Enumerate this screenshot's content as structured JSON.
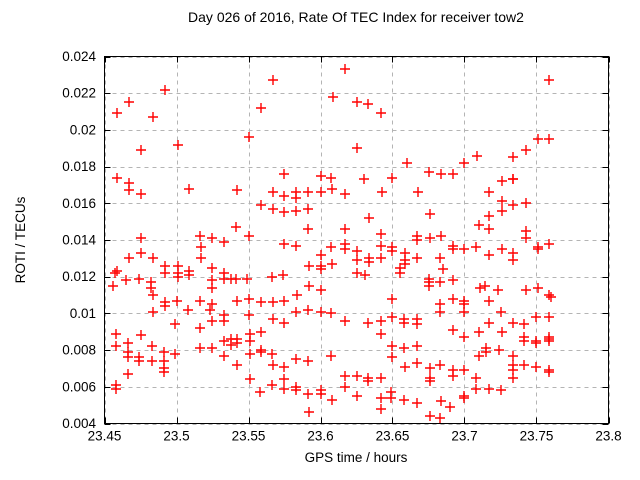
{
  "chart_data": {
    "type": "scatter",
    "title": "Day 026 of 2016, Rate Of TEC Index for receiver tow2",
    "xlabel": "GPS time / hours",
    "ylabel": "ROTI / TECUs",
    "xlim": [
      23.45,
      23.8
    ],
    "ylim": [
      0.004,
      0.024
    ],
    "x_ticks": [
      23.45,
      23.5,
      23.55,
      23.6,
      23.65,
      23.7,
      23.75,
      23.8
    ],
    "x_tick_labels": [
      "23.45",
      "23.5",
      "23.55",
      "23.6",
      "23.65",
      "23.7",
      "23.75",
      "23.8"
    ],
    "y_ticks": [
      0.004,
      0.006,
      0.008,
      0.01,
      0.012,
      0.014,
      0.016,
      0.018,
      0.02,
      0.022,
      0.024
    ],
    "y_tick_labels": [
      "0.004",
      "0.006",
      "0.008",
      "0.01",
      "0.012",
      "0.014",
      "0.016",
      "0.018",
      "0.02",
      "0.022",
      "0.024"
    ],
    "grid": true,
    "legend": "none",
    "marker_shape": "plus",
    "marker_color": "#ff0000",
    "grid_color": "#b4b4b4",
    "border_color": "#000000",
    "background_color": "#ffffff",
    "points": [
      [
        23.492,
        0.0222
      ],
      [
        23.467,
        0.0215
      ],
      [
        23.459,
        0.0209
      ],
      [
        23.484,
        0.0207
      ],
      [
        23.501,
        0.0192
      ],
      [
        23.475,
        0.0189
      ],
      [
        23.459,
        0.0174
      ],
      [
        23.617,
        0.0233
      ],
      [
        23.567,
        0.0227
      ],
      [
        23.609,
        0.0218
      ],
      [
        23.559,
        0.0212
      ],
      [
        23.55,
        0.0196
      ],
      [
        23.575,
        0.0176
      ],
      [
        23.6,
        0.0175
      ],
      [
        23.625,
        0.0215
      ],
      [
        23.633,
        0.0214
      ],
      [
        23.642,
        0.0209
      ],
      [
        23.625,
        0.019
      ],
      [
        23.66,
        0.0182
      ],
      [
        23.675,
        0.0177
      ],
      [
        23.684,
        0.0176
      ],
      [
        23.692,
        0.0176
      ],
      [
        23.709,
        0.0186
      ],
      [
        23.7,
        0.0182
      ],
      [
        23.65,
        0.0174
      ],
      [
        23.759,
        0.0227
      ],
      [
        23.751,
        0.0195
      ],
      [
        23.759,
        0.0195
      ],
      [
        23.743,
        0.0189
      ],
      [
        23.734,
        0.0185
      ],
      [
        23.734,
        0.0173
      ],
      [
        23.467,
        0.0171
      ],
      [
        23.467,
        0.0167
      ],
      [
        23.475,
        0.0165
      ],
      [
        23.509,
        0.0168
      ],
      [
        23.475,
        0.0141
      ],
      [
        23.475,
        0.0133
      ],
      [
        23.467,
        0.013
      ],
      [
        23.484,
        0.013
      ],
      [
        23.459,
        0.0123
      ],
      [
        23.457,
        0.0122
      ],
      [
        23.456,
        0.0115
      ],
      [
        23.465,
        0.0118
      ],
      [
        23.474,
        0.0119
      ],
      [
        23.482,
        0.0117
      ],
      [
        23.482,
        0.0114
      ],
      [
        23.484,
        0.011
      ],
      [
        23.492,
        0.0126
      ],
      [
        23.492,
        0.0122
      ],
      [
        23.501,
        0.0126
      ],
      [
        23.501,
        0.0122
      ],
      [
        23.501,
        0.012
      ],
      [
        23.509,
        0.0123
      ],
      [
        23.509,
        0.0121
      ],
      [
        23.516,
        0.0142
      ],
      [
        23.525,
        0.0141
      ],
      [
        23.533,
        0.0139
      ],
      [
        23.517,
        0.0136
      ],
      [
        23.517,
        0.013
      ],
      [
        23.525,
        0.0125
      ],
      [
        23.533,
        0.0122
      ],
      [
        23.533,
        0.0119
      ],
      [
        23.525,
        0.0118
      ],
      [
        23.525,
        0.0114
      ],
      [
        23.542,
        0.0167
      ],
      [
        23.567,
        0.0166
      ],
      [
        23.575,
        0.0164
      ],
      [
        23.583,
        0.0166
      ],
      [
        23.583,
        0.0163
      ],
      [
        23.591,
        0.0166
      ],
      [
        23.6,
        0.0166
      ],
      [
        23.608,
        0.0168
      ],
      [
        23.617,
        0.0165
      ],
      [
        23.559,
        0.0159
      ],
      [
        23.567,
        0.0157
      ],
      [
        23.575,
        0.0155
      ],
      [
        23.583,
        0.0156
      ],
      [
        23.591,
        0.0157
      ],
      [
        23.541,
        0.0147
      ],
      [
        23.591,
        0.0146
      ],
      [
        23.617,
        0.0146
      ],
      [
        23.55,
        0.0142
      ],
      [
        23.575,
        0.0138
      ],
      [
        23.583,
        0.0137
      ],
      [
        23.607,
        0.0136
      ],
      [
        23.617,
        0.0138
      ],
      [
        23.617,
        0.0135
      ],
      [
        23.6,
        0.0132
      ],
      [
        23.592,
        0.0126
      ],
      [
        23.6,
        0.0126
      ],
      [
        23.6,
        0.0124
      ],
      [
        23.608,
        0.0127
      ],
      [
        23.566,
        0.012
      ],
      [
        23.574,
        0.0121
      ],
      [
        23.541,
        0.0119
      ],
      [
        23.549,
        0.0119
      ],
      [
        23.538,
        0.0119
      ],
      [
        23.592,
        0.0115
      ],
      [
        23.6,
        0.0113
      ],
      [
        23.607,
        0.0174
      ],
      [
        23.63,
        0.0173
      ],
      [
        23.643,
        0.0166
      ],
      [
        23.668,
        0.0166
      ],
      [
        23.634,
        0.0152
      ],
      [
        23.676,
        0.0154
      ],
      [
        23.71,
        0.0148
      ],
      [
        23.642,
        0.0143
      ],
      [
        23.642,
        0.0137
      ],
      [
        23.65,
        0.0136
      ],
      [
        23.65,
        0.0134
      ],
      [
        23.659,
        0.0133
      ],
      [
        23.659,
        0.0129
      ],
      [
        23.659,
        0.0127
      ],
      [
        23.667,
        0.0142
      ],
      [
        23.667,
        0.014
      ],
      [
        23.667,
        0.013
      ],
      [
        23.676,
        0.0141
      ],
      [
        23.684,
        0.0142
      ],
      [
        23.683,
        0.013
      ],
      [
        23.692,
        0.0137
      ],
      [
        23.692,
        0.0135
      ],
      [
        23.7,
        0.0135
      ],
      [
        23.708,
        0.0136
      ],
      [
        23.625,
        0.0134
      ],
      [
        23.625,
        0.0129
      ],
      [
        23.625,
        0.0122
      ],
      [
        23.631,
        0.0121
      ],
      [
        23.634,
        0.013
      ],
      [
        23.634,
        0.0128
      ],
      [
        23.642,
        0.013
      ],
      [
        23.655,
        0.0125
      ],
      [
        23.655,
        0.0122
      ],
      [
        23.685,
        0.0124
      ],
      [
        23.692,
        0.0118
      ],
      [
        23.675,
        0.0119
      ],
      [
        23.675,
        0.0117
      ],
      [
        23.675,
        0.0115
      ],
      [
        23.683,
        0.0117
      ],
      [
        23.711,
        0.0114
      ],
      [
        23.726,
        0.0172
      ],
      [
        23.734,
        0.0173
      ],
      [
        23.717,
        0.0166
      ],
      [
        23.726,
        0.0161
      ],
      [
        23.734,
        0.0159
      ],
      [
        23.743,
        0.016
      ],
      [
        23.726,
        0.0156
      ],
      [
        23.717,
        0.0153
      ],
      [
        23.717,
        0.0146
      ],
      [
        23.743,
        0.0145
      ],
      [
        23.743,
        0.0141
      ],
      [
        23.751,
        0.0136
      ],
      [
        23.751,
        0.0135
      ],
      [
        23.759,
        0.0138
      ],
      [
        23.726,
        0.0135
      ],
      [
        23.717,
        0.0132
      ],
      [
        23.734,
        0.0133
      ],
      [
        23.734,
        0.0129
      ],
      [
        23.714,
        0.0115
      ],
      [
        23.723,
        0.0113
      ],
      [
        23.743,
        0.0113
      ],
      [
        23.751,
        0.0114
      ],
      [
        23.759,
        0.011
      ],
      [
        23.492,
        0.0106
      ],
      [
        23.492,
        0.0104
      ],
      [
        23.5,
        0.0107
      ],
      [
        23.516,
        0.0107
      ],
      [
        23.525,
        0.0105
      ],
      [
        23.484,
        0.0101
      ],
      [
        23.508,
        0.0102
      ],
      [
        23.523,
        0.0102
      ],
      [
        23.533,
        0.0099
      ],
      [
        23.525,
        0.0096
      ],
      [
        23.533,
        0.0096
      ],
      [
        23.499,
        0.0094
      ],
      [
        23.516,
        0.0092
      ],
      [
        23.458,
        0.0089
      ],
      [
        23.475,
        0.0088
      ],
      [
        23.533,
        0.0085
      ],
      [
        23.458,
        0.0082
      ],
      [
        23.466,
        0.0084
      ],
      [
        23.483,
        0.0082
      ],
      [
        23.499,
        0.0078
      ],
      [
        23.516,
        0.0081
      ],
      [
        23.525,
        0.0081
      ],
      [
        23.533,
        0.0077
      ],
      [
        23.466,
        0.0079
      ],
      [
        23.466,
        0.0076
      ],
      [
        23.474,
        0.0076
      ],
      [
        23.474,
        0.0074
      ],
      [
        23.483,
        0.0074
      ],
      [
        23.491,
        0.0079
      ],
      [
        23.491,
        0.0074
      ],
      [
        23.491,
        0.007
      ],
      [
        23.491,
        0.0068
      ],
      [
        23.466,
        0.0067
      ],
      [
        23.458,
        0.0061
      ],
      [
        23.458,
        0.0059
      ],
      [
        23.542,
        0.0107
      ],
      [
        23.55,
        0.0108
      ],
      [
        23.559,
        0.0106
      ],
      [
        23.567,
        0.0106
      ],
      [
        23.575,
        0.0107
      ],
      [
        23.584,
        0.011
      ],
      [
        23.55,
        0.0099
      ],
      [
        23.567,
        0.0097
      ],
      [
        23.575,
        0.0095
      ],
      [
        23.583,
        0.0101
      ],
      [
        23.591,
        0.0102
      ],
      [
        23.6,
        0.0101
      ],
      [
        23.607,
        0.01
      ],
      [
        23.617,
        0.0096
      ],
      [
        23.551,
        0.0089
      ],
      [
        23.559,
        0.009
      ],
      [
        23.542,
        0.0086
      ],
      [
        23.542,
        0.0084
      ],
      [
        23.551,
        0.0085
      ],
      [
        23.559,
        0.008
      ],
      [
        23.559,
        0.0079
      ],
      [
        23.542,
        0.0072
      ],
      [
        23.551,
        0.0078
      ],
      [
        23.566,
        0.0078
      ],
      [
        23.567,
        0.0072
      ],
      [
        23.575,
        0.0071
      ],
      [
        23.583,
        0.0075
      ],
      [
        23.591,
        0.0074
      ],
      [
        23.607,
        0.0077
      ],
      [
        23.551,
        0.0064
      ],
      [
        23.566,
        0.0061
      ],
      [
        23.575,
        0.0064
      ],
      [
        23.575,
        0.0059
      ],
      [
        23.558,
        0.0057
      ],
      [
        23.583,
        0.006
      ],
      [
        23.583,
        0.0058
      ],
      [
        23.591,
        0.0056
      ],
      [
        23.6,
        0.0058
      ],
      [
        23.6,
        0.0056
      ],
      [
        23.608,
        0.0053
      ],
      [
        23.592,
        0.0046
      ],
      [
        23.617,
        0.0066
      ],
      [
        23.617,
        0.006
      ],
      [
        23.538,
        0.0086
      ],
      [
        23.538,
        0.0083
      ],
      [
        23.65,
        0.0108
      ],
      [
        23.683,
        0.0105
      ],
      [
        23.692,
        0.0108
      ],
      [
        23.7,
        0.0107
      ],
      [
        23.7,
        0.0105
      ],
      [
        23.683,
        0.0101
      ],
      [
        23.7,
        0.0101
      ],
      [
        23.633,
        0.0095
      ],
      [
        23.642,
        0.0096
      ],
      [
        23.65,
        0.0098
      ],
      [
        23.658,
        0.0097
      ],
      [
        23.658,
        0.0095
      ],
      [
        23.667,
        0.0097
      ],
      [
        23.667,
        0.0094
      ],
      [
        23.642,
        0.0089
      ],
      [
        23.692,
        0.0091
      ],
      [
        23.7,
        0.0087
      ],
      [
        23.71,
        0.009
      ],
      [
        23.65,
        0.0082
      ],
      [
        23.658,
        0.0081
      ],
      [
        23.667,
        0.0082
      ],
      [
        23.65,
        0.0076
      ],
      [
        23.659,
        0.0071
      ],
      [
        23.667,
        0.0073
      ],
      [
        23.676,
        0.007
      ],
      [
        23.683,
        0.0072
      ],
      [
        23.676,
        0.0065
      ],
      [
        23.676,
        0.0063
      ],
      [
        23.692,
        0.0069
      ],
      [
        23.692,
        0.0066
      ],
      [
        23.7,
        0.0069
      ],
      [
        23.625,
        0.0066
      ],
      [
        23.633,
        0.0065
      ],
      [
        23.633,
        0.0063
      ],
      [
        23.642,
        0.0065
      ],
      [
        23.625,
        0.0055
      ],
      [
        23.642,
        0.0054
      ],
      [
        23.642,
        0.0048
      ],
      [
        23.649,
        0.0057
      ],
      [
        23.649,
        0.0054
      ],
      [
        23.658,
        0.0053
      ],
      [
        23.667,
        0.0051
      ],
      [
        23.684,
        0.0052
      ],
      [
        23.69,
        0.0049
      ],
      [
        23.7,
        0.0055
      ],
      [
        23.7,
        0.0054
      ],
      [
        23.708,
        0.0065
      ],
      [
        23.708,
        0.0059
      ],
      [
        23.71,
        0.0077
      ],
      [
        23.676,
        0.0044
      ],
      [
        23.683,
        0.0043
      ],
      [
        23.717,
        0.0107
      ],
      [
        23.76,
        0.0109
      ],
      [
        23.725,
        0.0101
      ],
      [
        23.75,
        0.0098
      ],
      [
        23.759,
        0.0098
      ],
      [
        23.717,
        0.0095
      ],
      [
        23.734,
        0.0095
      ],
      [
        23.741,
        0.0094
      ],
      [
        23.726,
        0.009
      ],
      [
        23.741,
        0.0087
      ],
      [
        23.741,
        0.0085
      ],
      [
        23.75,
        0.0085
      ],
      [
        23.75,
        0.0084
      ],
      [
        23.759,
        0.0087
      ],
      [
        23.759,
        0.0086
      ],
      [
        23.759,
        0.0085
      ],
      [
        23.715,
        0.0081
      ],
      [
        23.715,
        0.0079
      ],
      [
        23.724,
        0.008
      ],
      [
        23.734,
        0.0077
      ],
      [
        23.734,
        0.0072
      ],
      [
        23.734,
        0.0069
      ],
      [
        23.741,
        0.0072
      ],
      [
        23.75,
        0.0071
      ],
      [
        23.759,
        0.0069
      ],
      [
        23.759,
        0.0068
      ],
      [
        23.734,
        0.0065
      ],
      [
        23.717,
        0.0059
      ],
      [
        23.725,
        0.0058
      ]
    ]
  }
}
